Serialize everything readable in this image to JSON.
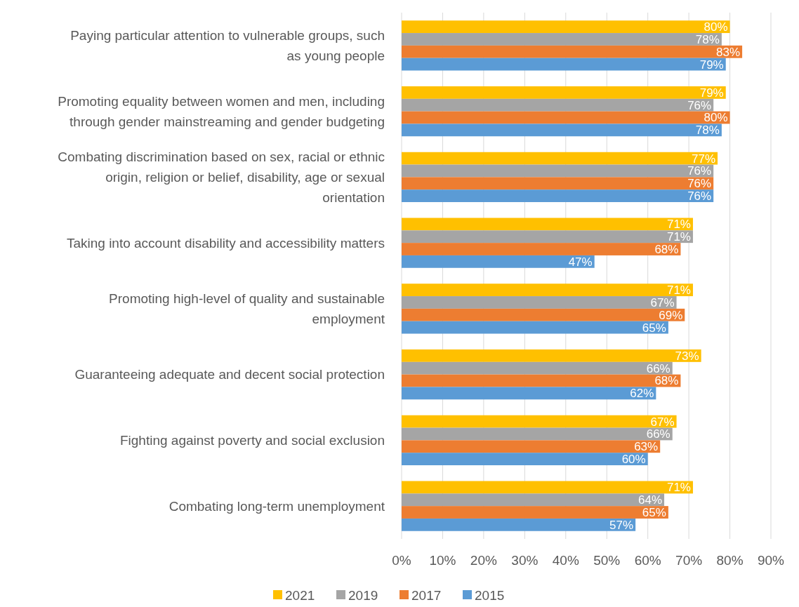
{
  "chart_data": {
    "type": "bar",
    "orientation": "horizontal",
    "categories": [
      "Paying particular attention to vulnerable groups, such as young people",
      "Promoting equality between women and men, including through gender mainstreaming and gender budgeting",
      "Combating discrimination based on sex, racial or ethnic origin, religion or belief, disability, age or sexual orientation",
      "Taking into account disability and accessibility matters",
      "Promoting high-level of quality and sustainable employment",
      "Guaranteeing adequate and decent social protection",
      "Fighting against poverty and social exclusion",
      "Combating long-term unemployment"
    ],
    "series": [
      {
        "name": "2021",
        "color": "#ffc000",
        "values": [
          80,
          79,
          77,
          71,
          71,
          73,
          67,
          71
        ],
        "value_labels": [
          "80%",
          "79%",
          "77%",
          "71%",
          "71%",
          "73%",
          "67%",
          "71%"
        ]
      },
      {
        "name": "2019",
        "color": "#a5a5a5",
        "values": [
          78,
          76,
          76,
          71,
          67,
          66,
          66,
          64
        ],
        "value_labels": [
          "78%",
          "76%",
          "76%",
          "71%",
          "67%",
          "66%",
          "66%",
          "64%"
        ]
      },
      {
        "name": "2017",
        "color": "#ed7d31",
        "values": [
          83,
          80,
          76,
          68,
          69,
          68,
          63,
          65
        ],
        "value_labels": [
          "83%",
          "80%",
          "76%",
          "68%",
          "69%",
          "68%",
          "63%",
          "65%"
        ]
      },
      {
        "name": "2015",
        "color": "#5b9bd5",
        "values": [
          79,
          78,
          76,
          47,
          65,
          62,
          60,
          57
        ],
        "value_labels": [
          "79%",
          "78%",
          "76%",
          "47%",
          "65%",
          "62%",
          "60%",
          "57%"
        ]
      }
    ],
    "xlim": [
      0,
      90
    ],
    "xticks": [
      {
        "value": 0,
        "label": "0%"
      },
      {
        "value": 10,
        "label": "10%"
      },
      {
        "value": 20,
        "label": "20%"
      },
      {
        "value": 30,
        "label": "30%"
      },
      {
        "value": 40,
        "label": "40%"
      },
      {
        "value": 50,
        "label": "50%"
      },
      {
        "value": 60,
        "label": "60%"
      },
      {
        "value": 70,
        "label": "70%"
      },
      {
        "value": 80,
        "label": "80%"
      },
      {
        "value": 90,
        "label": "90%"
      }
    ],
    "grid": "x",
    "legend": "bottom"
  }
}
